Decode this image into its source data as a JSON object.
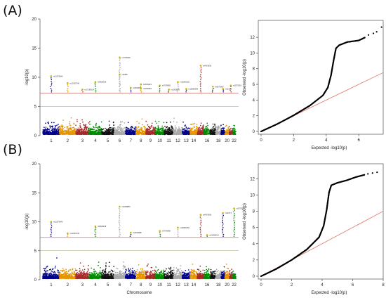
{
  "panels": [
    {
      "label": "(A)",
      "manhattan": {
        "type": "scatter",
        "ylabel": "-log10(p)",
        "xlabel": "",
        "ylim": [
          0,
          20
        ],
        "yticks": [
          0,
          5,
          10,
          15,
          20
        ],
        "chromosomes": [
          "1",
          "2",
          "3",
          "4",
          "5",
          "6",
          "7",
          "8",
          "9",
          "10",
          "11",
          "12",
          "13",
          "14",
          "15",
          "16",
          "17",
          "18",
          "19",
          "20",
          "21",
          "22"
        ],
        "chrom_tick_labels": [
          "1",
          "2",
          "3",
          "4",
          "5",
          "6",
          "7",
          "8",
          "9",
          "10",
          "11",
          "12",
          "13",
          "14",
          "16",
          "18",
          "20",
          "22"
        ],
        "colors": [
          "#00008B",
          "#E69500",
          "#A52A2A",
          "#008B00",
          "#111111",
          "#A9A9A9"
        ],
        "highlight_color": "#C8B400",
        "thresholds": [
          {
            "y": 7.3,
            "color": "#C0504D"
          },
          {
            "y": 5,
            "color": "#A0A070"
          }
        ],
        "peaks": [
          {
            "chrom": "1",
            "y": 10.2,
            "label": "rs11575840"
          },
          {
            "chrom": "2",
            "y": 9.0,
            "label": "rs10197246"
          },
          {
            "chrom": "3",
            "y": 7.9,
            "label": "rs17185014"
          },
          {
            "chrom": "4",
            "y": 9.2,
            "label": "rs6828318"
          },
          {
            "chrom": "6",
            "y": 13.4,
            "label": "rs7768426"
          },
          {
            "chrom": "6",
            "y": 10.5,
            "label": "rs9368"
          },
          {
            "chrom": "7",
            "y": 8.2,
            "label": "rs2469988"
          },
          {
            "chrom": "8",
            "y": 8.8,
            "label": "rs2029621"
          },
          {
            "chrom": "8",
            "y": 8.1,
            "label": "rs2290822"
          },
          {
            "chrom": "10",
            "y": 8.6,
            "label": "rs7078990"
          },
          {
            "chrom": "11",
            "y": 7.9,
            "label": "rs1063856"
          },
          {
            "chrom": "12",
            "y": 9.2,
            "label": "rs11835152"
          },
          {
            "chrom": "13",
            "y": 8.0,
            "label": "rs12860099"
          },
          {
            "chrom": "15",
            "y": 12.0,
            "label": "rs4970836"
          },
          {
            "chrom": "17",
            "y": 8.4,
            "label": "rs8073809"
          },
          {
            "chrom": "19",
            "y": 8.0,
            "label": "rs11671"
          },
          {
            "chrom": "21",
            "y": 8.6,
            "label": "rs2075561"
          }
        ]
      },
      "qq": {
        "type": "scatter",
        "xlabel": "Expected  -log10(p)",
        "ylabel": "Observed  -log10(p)",
        "xlim": [
          0,
          7.5
        ],
        "ylim": [
          0,
          13.8
        ],
        "xticks": [
          0,
          2,
          4,
          6
        ],
        "yticks": [
          0,
          2,
          4,
          6,
          8,
          10,
          12
        ],
        "observed_curve": [
          [
            0,
            0
          ],
          [
            1,
            0.95
          ],
          [
            2,
            2.05
          ],
          [
            3,
            3.3
          ],
          [
            3.8,
            4.6
          ],
          [
            4.1,
            5.6
          ],
          [
            4.3,
            7.2
          ],
          [
            4.45,
            9.0
          ],
          [
            4.6,
            10.6
          ],
          [
            4.8,
            11.0
          ],
          [
            5.3,
            11.4
          ],
          [
            6.0,
            11.6
          ],
          [
            6.4,
            12.0
          ]
        ],
        "top_points": [
          [
            6.6,
            12.3
          ],
          [
            6.9,
            12.5
          ],
          [
            7.1,
            12.7
          ],
          [
            7.4,
            13.3
          ]
        ],
        "reference_color": "#E07060"
      }
    },
    {
      "label": "(B)",
      "manhattan": {
        "type": "scatter",
        "ylabel": "-log10(p)",
        "xlabel": "Chromosome",
        "ylim": [
          0,
          20
        ],
        "yticks": [
          0,
          5,
          10,
          15,
          20
        ],
        "chromosomes": [
          "1",
          "2",
          "3",
          "4",
          "5",
          "6",
          "7",
          "8",
          "9",
          "10",
          "11",
          "12",
          "13",
          "14",
          "15",
          "16",
          "17",
          "18",
          "19",
          "20",
          "21",
          "22"
        ],
        "chrom_tick_labels": [
          "1",
          "2",
          "3",
          "4",
          "5",
          "6",
          "7",
          "8",
          "9",
          "10",
          "11",
          "12",
          "13",
          "14",
          "16",
          "18",
          "20",
          "22"
        ],
        "colors": [
          "#00008B",
          "#E69500",
          "#A52A2A",
          "#008B00",
          "#111111",
          "#A9A9A9"
        ],
        "highlight_color": "#C8B400",
        "thresholds": [
          {
            "y": 7.3,
            "color": "#C0504D"
          },
          {
            "y": 5,
            "color": "#A0A070"
          }
        ],
        "peaks": [
          {
            "chrom": "1",
            "y": 10.0,
            "label": "rs11575840"
          },
          {
            "chrom": "2",
            "y": 8.0,
            "label": "rs10197246"
          },
          {
            "chrom": "4",
            "y": 9.2,
            "label": "rs6828318"
          },
          {
            "chrom": "6",
            "y": 12.6,
            "label": "rs9268853"
          },
          {
            "chrom": "7",
            "y": 8.1,
            "label": "rs2469988"
          },
          {
            "chrom": "10",
            "y": 8.4,
            "label": "rs7078990"
          },
          {
            "chrom": "12",
            "y": 9.0,
            "label": "rs11835152"
          },
          {
            "chrom": "15",
            "y": 11.2,
            "label": "rs4970836"
          },
          {
            "chrom": "16",
            "y": 7.7,
            "label": "rs12593813"
          },
          {
            "chrom": "19",
            "y": 11.5,
            "label": "rs11671"
          },
          {
            "chrom": "22",
            "y": 12.3,
            "label": "rs2075561"
          }
        ]
      },
      "qq": {
        "type": "scatter",
        "xlabel": "Expected  -log10(p)",
        "ylabel": "Observed  -log10(p)",
        "xlim": [
          0,
          8
        ],
        "ylim": [
          0,
          13.5
        ],
        "xticks": [
          0,
          2,
          4,
          6,
          8
        ],
        "yticks": [
          0,
          2,
          4,
          6,
          8,
          10,
          12
        ],
        "observed_curve": [
          [
            0,
            0
          ],
          [
            1,
            0.9
          ],
          [
            2,
            2.0
          ],
          [
            3,
            3.3
          ],
          [
            3.8,
            4.8
          ],
          [
            4.1,
            6.2
          ],
          [
            4.3,
            8.2
          ],
          [
            4.45,
            10.3
          ],
          [
            4.6,
            11.2
          ],
          [
            5.0,
            11.5
          ],
          [
            5.6,
            11.8
          ],
          [
            6.2,
            12.2
          ],
          [
            6.8,
            12.5
          ]
        ],
        "top_points": [
          [
            7.0,
            12.6
          ],
          [
            7.3,
            12.7
          ],
          [
            7.6,
            12.8
          ]
        ],
        "reference_color": "#E07060"
      }
    }
  ]
}
